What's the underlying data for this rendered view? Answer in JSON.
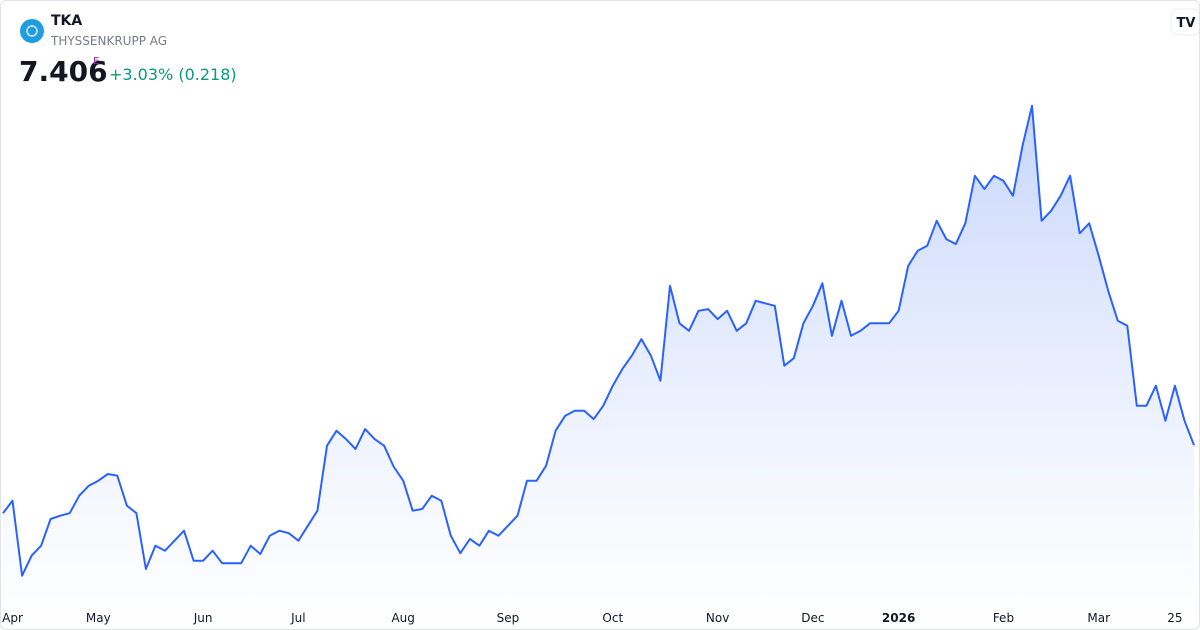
{
  "header": {
    "symbol": "TKA",
    "name": "THYSSENKRUPP AG",
    "price": "7.406",
    "badge": "E",
    "change": "+3.03% (0.218)"
  },
  "chart_data": {
    "type": "line",
    "categories": [
      null,
      "Apr",
      null,
      null,
      null,
      null,
      null,
      null,
      null,
      null,
      "May",
      null,
      null,
      null,
      null,
      null,
      null,
      null,
      null,
      null,
      null,
      "Jun",
      null,
      null,
      null,
      null,
      null,
      null,
      null,
      null,
      null,
      "Jul",
      null,
      null,
      null,
      null,
      null,
      null,
      null,
      null,
      null,
      null,
      "Aug",
      null,
      null,
      null,
      null,
      null,
      null,
      null,
      null,
      null,
      null,
      "Sep",
      null,
      null,
      null,
      null,
      null,
      null,
      null,
      null,
      null,
      null,
      "Oct",
      null,
      null,
      null,
      null,
      null,
      null,
      null,
      null,
      null,
      null,
      "Nov",
      null,
      null,
      null,
      null,
      null,
      null,
      null,
      null,
      null,
      "Dec",
      null,
      null,
      null,
      null,
      null,
      null,
      null,
      null,
      "2026",
      null,
      null,
      null,
      null,
      null,
      null,
      null,
      null,
      null,
      null,
      "Feb",
      null,
      null,
      null,
      null,
      null,
      null,
      null,
      null,
      null,
      "Mar",
      null,
      null,
      null,
      null,
      null,
      null,
      null,
      "25",
      null,
      null
    ],
    "values": [
      6.59,
      6.74,
      5.84,
      6.08,
      6.2,
      6.52,
      6.56,
      6.59,
      6.8,
      6.92,
      6.98,
      7.06,
      7.04,
      6.68,
      6.59,
      5.92,
      6.2,
      6.14,
      6.26,
      6.38,
      6.02,
      6.02,
      6.14,
      5.99,
      5.99,
      5.99,
      6.2,
      6.1,
      6.32,
      6.38,
      6.35,
      6.26,
      6.44,
      6.62,
      7.4,
      7.58,
      7.48,
      7.36,
      7.6,
      7.48,
      7.4,
      7.15,
      6.98,
      6.62,
      6.64,
      6.8,
      6.74,
      6.32,
      6.11,
      6.28,
      6.2,
      6.38,
      6.32,
      6.44,
      6.56,
      6.98,
      6.98,
      7.16,
      7.58,
      7.76,
      7.82,
      7.82,
      7.72,
      7.88,
      8.12,
      8.32,
      8.48,
      8.68,
      8.48,
      8.18,
      9.32,
      8.87,
      8.78,
      9.02,
      9.04,
      8.92,
      9.02,
      8.78,
      8.87,
      9.14,
      9.11,
      9.08,
      8.36,
      8.45,
      8.87,
      9.08,
      9.35,
      8.72,
      9.14,
      8.72,
      8.78,
      8.87,
      8.87,
      8.87,
      9.02,
      9.56,
      9.74,
      9.8,
      10.1,
      9.88,
      9.82,
      10.07,
      10.64,
      10.48,
      10.64,
      10.58,
      10.4,
      11.0,
      11.48,
      10.1,
      10.22,
      10.4,
      10.64,
      9.95,
      10.07,
      9.68,
      9.26,
      8.9,
      8.84,
      7.88,
      7.88,
      8.12,
      7.7,
      8.12,
      7.7,
      7.406
    ],
    "color": "#2962ff",
    "ylim": [
      5.5,
      11.7
    ]
  }
}
